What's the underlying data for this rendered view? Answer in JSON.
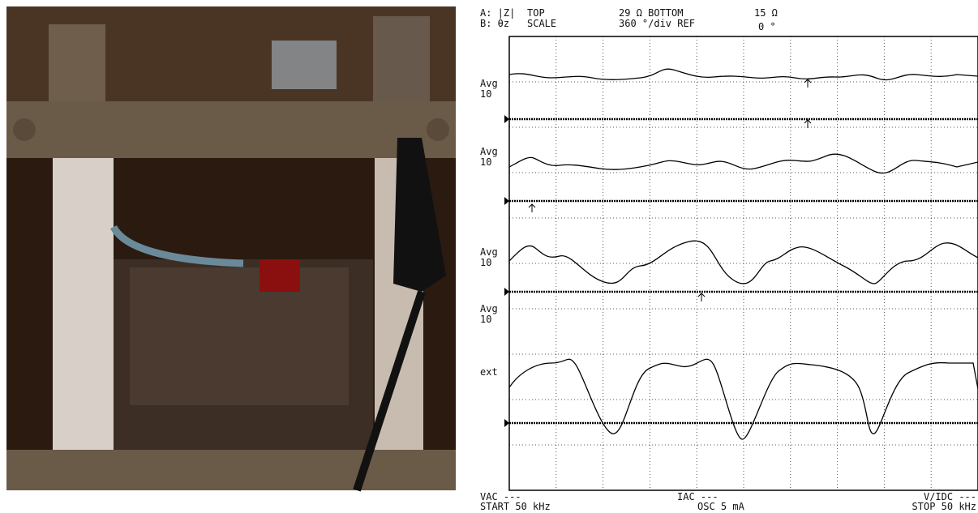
{
  "header": {
    "line1": [
      "A: |Z|",
      "TOP",
      "29 Ω BOTTOM",
      "15 Ω"
    ],
    "line2": [
      "B: θz",
      "SCALE",
      "360 °/div REF",
      "0 °"
    ]
  },
  "traces": [
    {
      "label": [
        "Avg",
        "10"
      ]
    },
    {
      "label": [
        "Avg",
        "10"
      ]
    },
    {
      "label": [
        "Avg",
        "10"
      ]
    },
    {
      "label": [
        "Avg",
        "10"
      ]
    },
    {
      "label": [
        "ext"
      ]
    }
  ],
  "footer": {
    "left": [
      "VAC ---",
      "START 50 kHz"
    ],
    "center": [
      "IAC ---",
      "OSC 5 mA"
    ],
    "right": [
      "V/IDC ---",
      "STOP 50 kHz"
    ]
  }
}
